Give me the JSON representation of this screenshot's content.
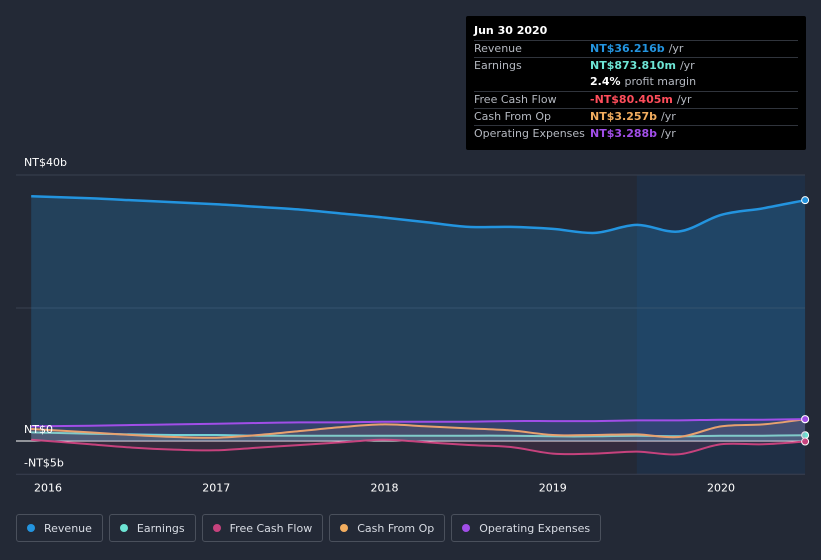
{
  "tooltip": {
    "date": "Jun 30 2020",
    "rows": [
      {
        "key": "Revenue",
        "value": "NT$36.216b",
        "unit": "/yr",
        "color": "#2394df"
      },
      {
        "key": "Earnings",
        "value": "NT$873.810m",
        "unit": "/yr",
        "color": "#6de4d4"
      },
      {
        "key": "",
        "value": "2.4%",
        "unit": "profit margin",
        "color": "#ffffff"
      },
      {
        "key": "Free Cash Flow",
        "value": "-NT$80.405m",
        "unit": "/yr",
        "color": "#ff4d5b"
      },
      {
        "key": "Cash From Op",
        "value": "NT$3.257b",
        "unit": "/yr",
        "color": "#f2ad5f"
      },
      {
        "key": "Operating Expenses",
        "value": "NT$3.288b",
        "unit": "/yr",
        "color": "#a14ee8"
      }
    ]
  },
  "y_labels": {
    "top": "NT$40b",
    "zero": "NT$0",
    "bottom": "-NT$5b"
  },
  "legend": [
    {
      "label": "Revenue",
      "color": "#2394df"
    },
    {
      "label": "Earnings",
      "color": "#6de4d4"
    },
    {
      "label": "Free Cash Flow",
      "color": "#c6427d"
    },
    {
      "label": "Cash From Op",
      "color": "#f2ad5f"
    },
    {
      "label": "Operating Expenses",
      "color": "#a14ee8"
    }
  ],
  "chart_data": {
    "type": "area",
    "x_ticks": [
      "2016",
      "2017",
      "2018",
      "2019",
      "2020"
    ],
    "ylim": [
      -5,
      40
    ],
    "y_tick_values": [
      -5,
      0,
      40
    ],
    "unit": "NT$ billions",
    "highlight_from": 2019.5,
    "x": [
      2015.9,
      2016.25,
      2016.5,
      2016.75,
      2017.0,
      2017.25,
      2017.5,
      2017.75,
      2018.0,
      2018.25,
      2018.5,
      2018.75,
      2019.0,
      2019.25,
      2019.5,
      2019.75,
      2020.0,
      2020.25,
      2020.5
    ],
    "series": [
      {
        "name": "Revenue",
        "color": "#2394df",
        "values": [
          36.8,
          36.5,
          36.2,
          35.9,
          35.6,
          35.2,
          34.8,
          34.2,
          33.6,
          32.9,
          32.2,
          32.2,
          31.9,
          31.3,
          32.5,
          31.5,
          34.0,
          35.0,
          36.216
        ]
      },
      {
        "name": "Earnings",
        "color": "#6de4d4",
        "values": [
          1.3,
          1.1,
          1.0,
          0.9,
          0.9,
          0.8,
          0.8,
          0.8,
          0.8,
          0.8,
          0.8,
          0.8,
          0.7,
          0.7,
          0.8,
          0.7,
          0.8,
          0.8,
          0.874
        ]
      },
      {
        "name": "Free Cash Flow",
        "color": "#c6427d",
        "values": [
          0.2,
          -0.5,
          -1.0,
          -1.3,
          -1.4,
          -1.0,
          -0.6,
          -0.2,
          0.2,
          -0.2,
          -0.6,
          -0.9,
          -1.9,
          -1.9,
          -1.6,
          -2.0,
          -0.5,
          -0.5,
          -0.08
        ]
      },
      {
        "name": "Cash From Op",
        "color": "#f2ad5f",
        "values": [
          1.8,
          1.3,
          0.9,
          0.6,
          0.5,
          0.9,
          1.5,
          2.1,
          2.5,
          2.2,
          1.9,
          1.6,
          0.9,
          0.9,
          1.0,
          0.6,
          2.2,
          2.5,
          3.257
        ]
      },
      {
        "name": "Operating Expenses",
        "color": "#a14ee8",
        "values": [
          2.2,
          2.3,
          2.4,
          2.5,
          2.6,
          2.7,
          2.8,
          2.8,
          2.9,
          2.9,
          2.9,
          3.0,
          3.0,
          3.0,
          3.1,
          3.1,
          3.2,
          3.2,
          3.288
        ]
      }
    ]
  }
}
